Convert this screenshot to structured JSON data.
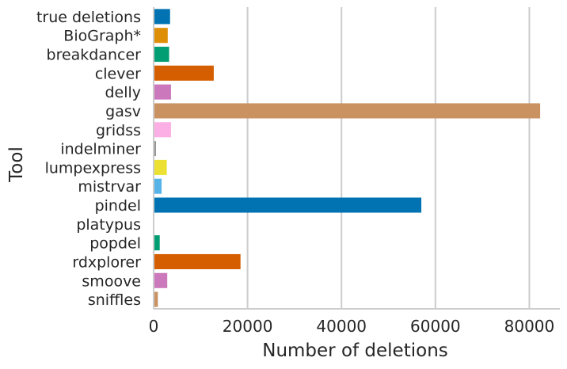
{
  "chart_data": {
    "type": "bar",
    "orientation": "horizontal",
    "title": "",
    "xlabel": "Number of deletions",
    "ylabel": "Tool",
    "xlim": [
      0,
      86500
    ],
    "x_ticks": [
      0,
      20000,
      40000,
      60000,
      80000
    ],
    "x_tick_labels": [
      "0",
      "20000",
      "40000",
      "60000",
      "80000"
    ],
    "grid": "vertical",
    "categories": [
      "true deletions",
      "BioGraph*",
      "breakdancer",
      "clever",
      "delly",
      "gasv",
      "gridss",
      "indelminer",
      "lumpexpress",
      "mistrvar",
      "pindel",
      "platypus",
      "popdel",
      "rdxplorer",
      "smoove",
      "sniffles"
    ],
    "values": [
      3500,
      3000,
      3300,
      12800,
      3700,
      82300,
      3700,
      500,
      2800,
      1700,
      57000,
      0,
      1300,
      18500,
      2900,
      900
    ],
    "colors": [
      "#0173b2",
      "#de8f05",
      "#029e73",
      "#d55e00",
      "#cc78bc",
      "#ca9161",
      "#fbafe4",
      "#949494",
      "#ece133",
      "#56b4e9",
      "#0173b2",
      "#de8f05",
      "#029e73",
      "#d55e00",
      "#cc78bc",
      "#ca9161"
    ]
  }
}
